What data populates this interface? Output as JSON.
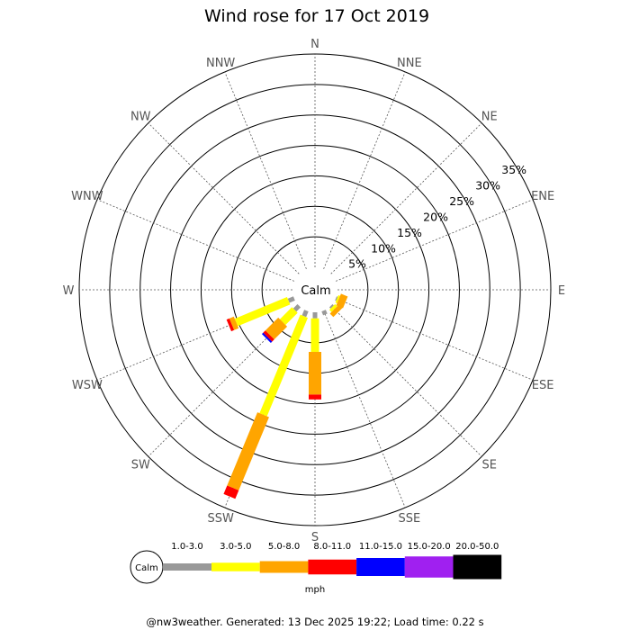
{
  "chart_data": {
    "type": "windrose",
    "title": "Wind rose for 17 Oct 2019",
    "units": "mph",
    "calm_label": "Calm",
    "directions": [
      "N",
      "NNE",
      "NE",
      "ENE",
      "E",
      "ESE",
      "SE",
      "SSE",
      "S",
      "SSW",
      "SW",
      "WSW",
      "W",
      "WNW",
      "NW",
      "NNW"
    ],
    "rings": [
      5,
      10,
      15,
      20,
      25,
      30,
      35
    ],
    "ring_labels": [
      "5%",
      "10%",
      "15%",
      "20%",
      "25%",
      "30%",
      "35%"
    ],
    "rmax": 35,
    "speed_bins": [
      {
        "label": "1.0-3.0",
        "color": "#999999"
      },
      {
        "label": "3.0-5.0",
        "color": "#ffff00"
      },
      {
        "label": "5.0-8.0",
        "color": "#ffa500"
      },
      {
        "label": "8.0-11.0",
        "color": "#ff0000"
      },
      {
        "label": "11.0-15.0",
        "color": "#0000ff"
      },
      {
        "label": "15.0-20.0",
        "color": "#a020f0"
      },
      {
        "label": "20.0-50.0",
        "color": "#000000"
      }
    ],
    "series": [
      {
        "direction": "ESE",
        "values": [
          0.2,
          0.3,
          1.2,
          0,
          0,
          0,
          0
        ]
      },
      {
        "direction": "SE",
        "values": [
          0.3,
          0.5,
          0.8,
          0,
          0,
          0,
          0
        ]
      },
      {
        "direction": "SSE",
        "values": [
          0.7,
          0,
          0,
          0,
          0,
          0,
          0
        ]
      },
      {
        "direction": "S",
        "values": [
          1.0,
          5.5,
          7.0,
          0.8,
          0,
          0,
          0
        ]
      },
      {
        "direction": "SSW",
        "values": [
          1.0,
          17.5,
          13.0,
          1.5,
          0,
          0,
          0
        ]
      },
      {
        "direction": "SW",
        "values": [
          1.0,
          2.8,
          3.0,
          0.5,
          0.3,
          0,
          0
        ]
      },
      {
        "direction": "WSW",
        "values": [
          1.0,
          9.3,
          0.8,
          0.5,
          0,
          0,
          0
        ]
      }
    ]
  },
  "footer": "@nw3weather. Generated: 13 Dec 2025 19:22; Load time: 0.22 s"
}
